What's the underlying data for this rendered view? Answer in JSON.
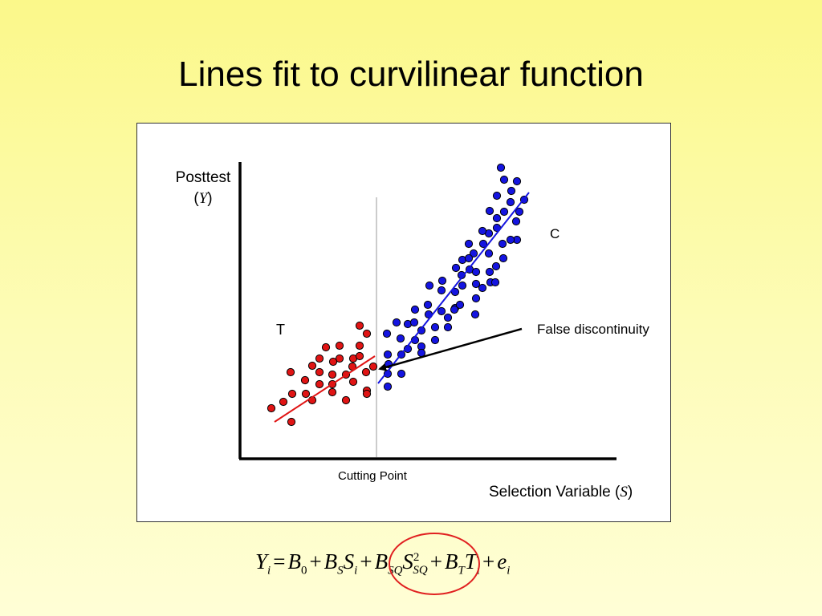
{
  "slide": {
    "title": "Lines fit to curvilinear function"
  },
  "diagram": {
    "y_axis_label_line1": "Posttest",
    "y_axis_label_var": "Y",
    "x_axis_label_text": "Selection Variable (",
    "x_axis_label_var": "S",
    "x_axis_label_close": ")",
    "cutting_point_label": "Cutting Point",
    "treatment_group_label": "T",
    "control_group_label": "C",
    "annotation": "False discontinuity",
    "colors": {
      "treatment": "#e01414",
      "control": "#1414e0",
      "axis": "#000000",
      "cutoff_line": "#999999"
    }
  },
  "equation": {
    "Y": "Y",
    "i1": "i",
    "eq": "=",
    "B0": "B",
    "zero": "0",
    "plus1": "+",
    "BS": "B",
    "S_sub": "S",
    "S": "S",
    "i2": "i",
    "plus2": "+",
    "BSQ": "B",
    "SQ_sub1": "SQ",
    "SSQ": "S",
    "sq": "2",
    "SQ_sub2": "SQ",
    "plus3": "+",
    "BT": "B",
    "T_sub": "T",
    "T": "T",
    "i3": "i",
    "plus4": "+",
    "e": "e",
    "i4": "i"
  }
}
